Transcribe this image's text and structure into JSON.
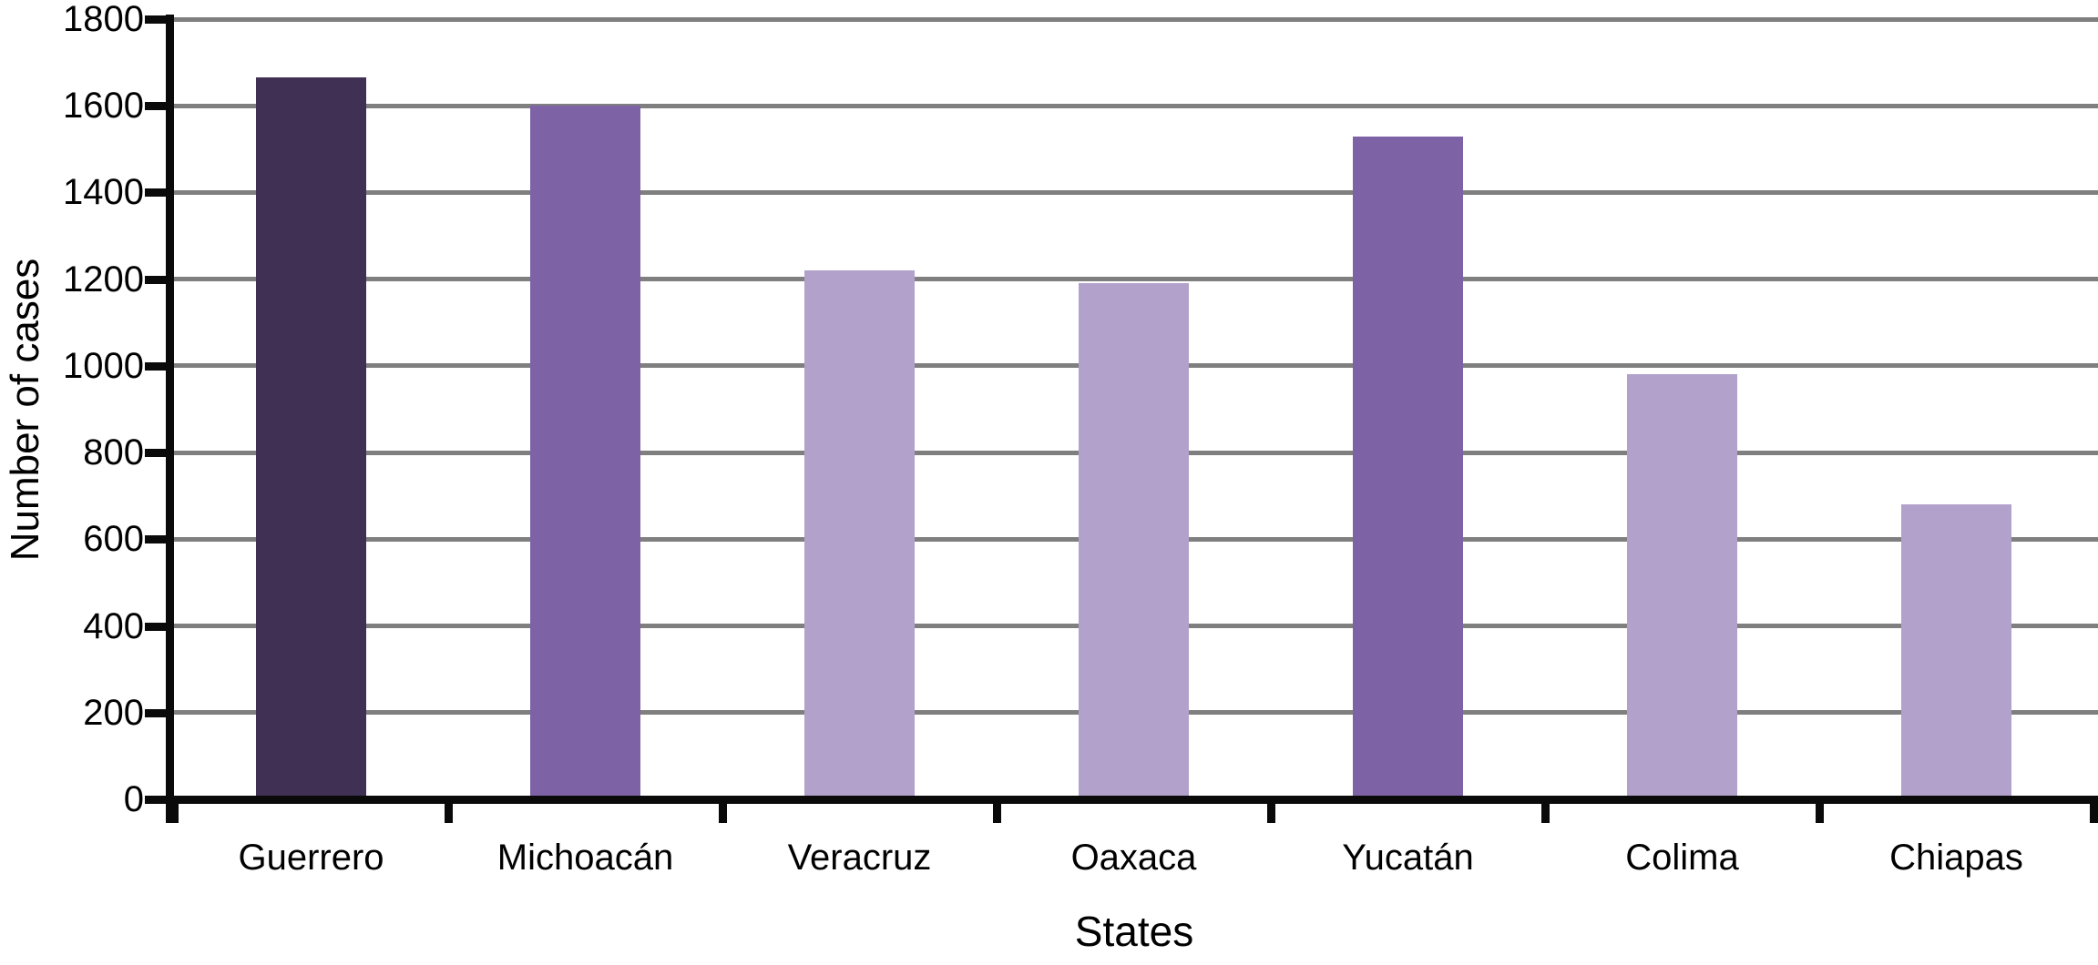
{
  "chart_data": {
    "type": "bar",
    "title": "",
    "xlabel": "States",
    "ylabel": "Number of cases",
    "categories": [
      "Guerrero",
      "Michoacán",
      "Veracruz",
      "Oaxaca",
      "Yucatán",
      "Colima",
      "Chiapas"
    ],
    "values": [
      1665,
      1600,
      1220,
      1190,
      1530,
      980,
      680
    ],
    "bar_colors": [
      "#3f3054",
      "#7d63a6",
      "#b2a1cb",
      "#b2a1cb",
      "#7d63a6",
      "#b2a1cb",
      "#b2a1cb"
    ],
    "ylim": [
      0,
      1800
    ],
    "ytick_step": 200,
    "ytick_labels": [
      "0",
      "200",
      "400",
      "600",
      "800",
      "1000",
      "1200",
      "1400",
      "1600",
      "1800"
    ],
    "grid": true,
    "legend": "none",
    "colors": {
      "gridline": "#7f7f7f",
      "axis": "#0a0a0a",
      "background": "#ffffff",
      "text": "#000000"
    }
  }
}
